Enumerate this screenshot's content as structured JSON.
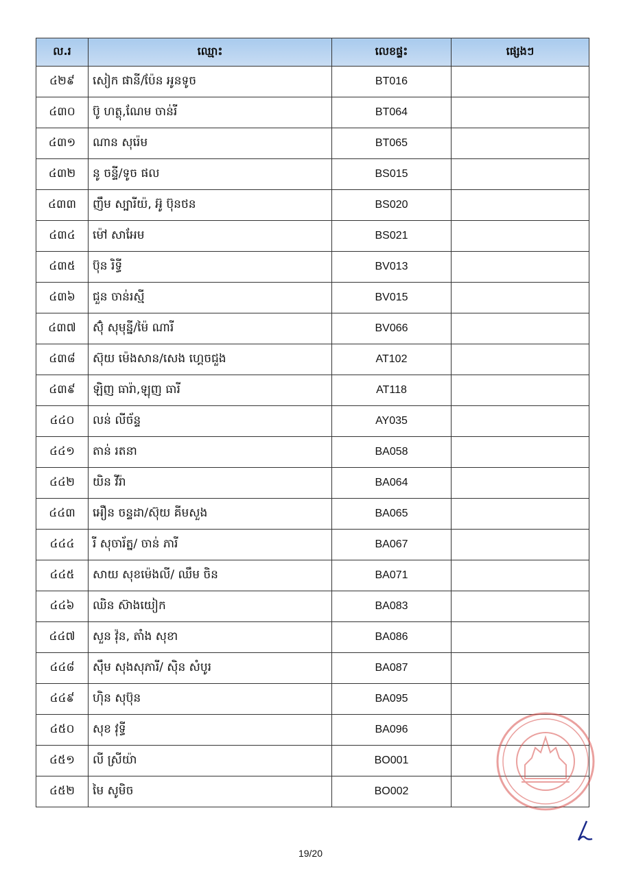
{
  "table": {
    "headers": [
      "ល.រ",
      "ឈ្មោះ",
      "លេខផ្ទះ",
      "ផ្សេងៗ"
    ],
    "rows": [
      {
        "no": "៤២៩",
        "name": "សៀក ផានី/ប៉ែន អូនទូច",
        "house": "BT016",
        "other": ""
      },
      {
        "no": "៤៣០",
        "name": "ប៊ូ ហត្ថុ,ណែម ចាន់រី",
        "house": "BT064",
        "other": ""
      },
      {
        "no": "៤៣១",
        "name": "ណាន សុរ៉េម",
        "house": "BT065",
        "other": ""
      },
      {
        "no": "៤៣២",
        "name": "នូ ចន្ទី/ទូច ផល",
        "house": "BS015",
        "other": ""
      },
      {
        "no": "៤៣៣",
        "name": "ញឹម ស្បារីយ៉, អ៊ូ ប៊ុនថន",
        "house": "BS020",
        "other": ""
      },
      {
        "no": "៤៣៤",
        "name": "ម៉ៅ សាអែម",
        "house": "BS021",
        "other": ""
      },
      {
        "no": "៤៣៥",
        "name": "ប៊ុន រិទ្ធី",
        "house": "BV013",
        "other": ""
      },
      {
        "no": "៤៣៦",
        "name": "ជួន ចាន់រស្មី",
        "house": "BV015",
        "other": ""
      },
      {
        "no": "៤៣៧",
        "name": "ស៊ុំ សុមុន្នី/ម៉ៃ ណារី",
        "house": "BV066",
        "other": ""
      },
      {
        "no": "៤៣៨",
        "name": "ស៊ុយ ម៉េងសាន/សេង ហ្គេចជួង",
        "house": "AT102",
        "other": ""
      },
      {
        "no": "៤៣៩",
        "name": "ឡិញ ធារ៉ា,ឡុញ ធារី",
        "house": "AT118",
        "other": ""
      },
      {
        "no": "៤៤០",
        "name": "លន់ លីច័ន្ទ",
        "house": "AY035",
        "other": ""
      },
      {
        "no": "៤៤១",
        "name": "តាន់ រតនា",
        "house": "BA058",
        "other": ""
      },
      {
        "no": "៤៤២",
        "name": "យិន វីរ៉ា",
        "house": "BA064",
        "other": ""
      },
      {
        "no": "៤៤៣",
        "name": "អឿន ចន្ទដា/ស៊ុយ គីមសួង",
        "house": "BA065",
        "other": ""
      },
      {
        "no": "៤៤៤",
        "name": "រី សុចារ័ត្ន/ ចាន់ ភារី",
        "house": "BA067",
        "other": ""
      },
      {
        "no": "៤៤៥",
        "name": "សាយ សុខម៉េងលី/ ឈឹម ចិន",
        "house": "BA071",
        "other": ""
      },
      {
        "no": "៤៤៦",
        "name": "ឈិន ស៊ាងយៀក",
        "house": "BA083",
        "other": ""
      },
      {
        "no": "៤៤៧",
        "name": "សួន វ៉ុន, តាំង សុខា",
        "house": "BA086",
        "other": ""
      },
      {
        "no": "៤៤៨",
        "name": "ស៊ឹម សុងសុភារី/ ស៊ិន សំបូរ",
        "house": "BA087",
        "other": ""
      },
      {
        "no": "៤៤៩",
        "name": "ហ៊ិន សុប៊ុន",
        "house": "BA095",
        "other": ""
      },
      {
        "no": "៤៥០",
        "name": "សុខ វុទ្ធី",
        "house": "BA096",
        "other": ""
      },
      {
        "no": "៤៥១",
        "name": "លី ស្រីយ៉ា",
        "house": "BO001",
        "other": ""
      },
      {
        "no": "៤៥២",
        "name": "មៃ សូមិច",
        "house": "BO002",
        "other": ""
      }
    ]
  },
  "footer": {
    "page": "19/20"
  },
  "colors": {
    "header_bg": "#bdd7ee",
    "stamp": "#d9534f",
    "signature": "#1a2a8a"
  }
}
